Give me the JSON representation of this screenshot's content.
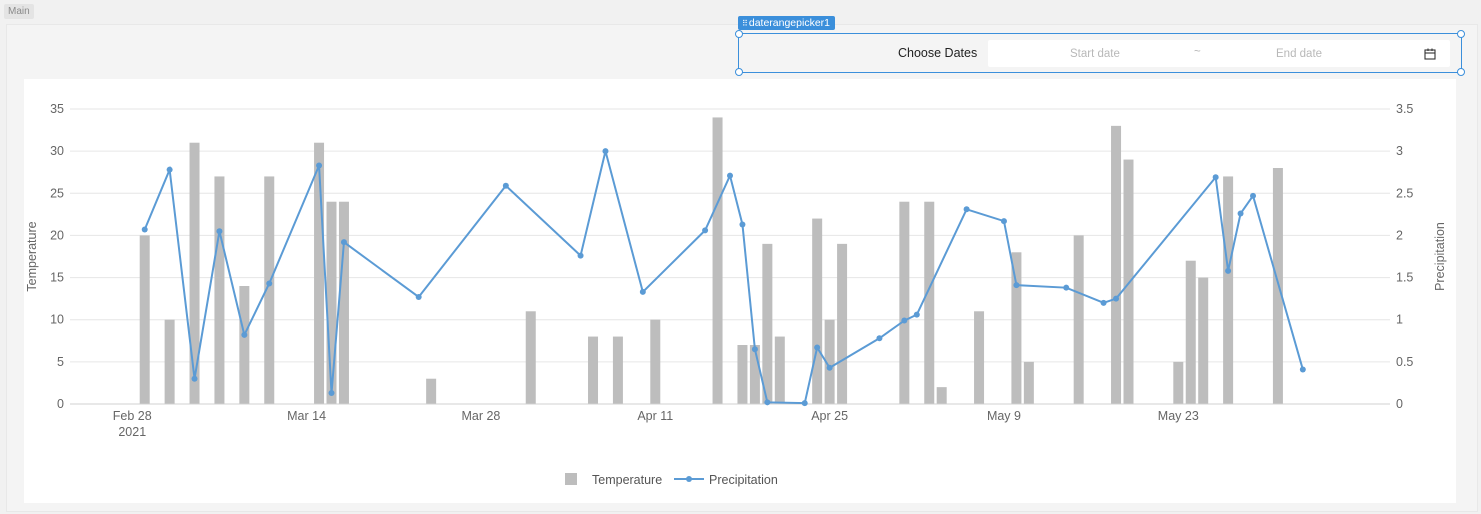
{
  "page": {
    "main_label": "Main"
  },
  "daterangepicker": {
    "tag_label": "daterangepicker1",
    "label": "Choose Dates",
    "start_placeholder": "Start date",
    "separator": "~",
    "end_placeholder": "End date",
    "calendar_icon": "calendar-icon"
  },
  "colors": {
    "bar": "#bdbdbd",
    "line": "#5b9bd5",
    "grid": "#e6e6e6",
    "axis_text": "#666666",
    "selection": "#3b8fdb"
  },
  "chart_data": {
    "type": "bar",
    "xlabel": "",
    "x_ticks": [
      "Feb 28|2021",
      "Mar 14",
      "Mar 28",
      "Apr 11",
      "Apr 25",
      "May 9",
      "May 23"
    ],
    "x_date_range": [
      "2021-02-23",
      "2021-06-09"
    ],
    "x_tick_dates": [
      "2021-02-28",
      "2021-03-14",
      "2021-03-28",
      "2021-04-11",
      "2021-04-25",
      "2021-05-09",
      "2021-05-23"
    ],
    "y_left": {
      "label": "Temperature",
      "lim": [
        0,
        35
      ],
      "ticks": [
        0,
        5,
        10,
        15,
        20,
        25,
        30,
        35
      ]
    },
    "y_right": {
      "label": "Precipitation",
      "lim": [
        0,
        3.5
      ],
      "ticks": [
        "0",
        "0.5",
        "1",
        "1.5",
        "2",
        "2.5",
        "3",
        "3.5"
      ]
    },
    "grid": true,
    "legend": {
      "position": "bottom-center",
      "items": [
        "Temperature",
        "Precipitation"
      ]
    },
    "series": [
      {
        "name": "Temperature",
        "type": "bar",
        "axis": "left",
        "points": [
          [
            "2021-03-01",
            20
          ],
          [
            "2021-03-03",
            10
          ],
          [
            "2021-03-05",
            31
          ],
          [
            "2021-03-07",
            27
          ],
          [
            "2021-03-09",
            14
          ],
          [
            "2021-03-11",
            27
          ],
          [
            "2021-03-15",
            31
          ],
          [
            "2021-03-16",
            24
          ],
          [
            "2021-03-17",
            24
          ],
          [
            "2021-03-24",
            3
          ],
          [
            "2021-04-01",
            11
          ],
          [
            "2021-04-06",
            8
          ],
          [
            "2021-04-08",
            8
          ],
          [
            "2021-04-11",
            10
          ],
          [
            "2021-04-16",
            34
          ],
          [
            "2021-04-18",
            7
          ],
          [
            "2021-04-19",
            7
          ],
          [
            "2021-04-20",
            19
          ],
          [
            "2021-04-21",
            8
          ],
          [
            "2021-04-24",
            22
          ],
          [
            "2021-04-25",
            10
          ],
          [
            "2021-04-26",
            19
          ],
          [
            "2021-05-01",
            24
          ],
          [
            "2021-05-03",
            24
          ],
          [
            "2021-05-04",
            2
          ],
          [
            "2021-05-07",
            11
          ],
          [
            "2021-05-10",
            18
          ],
          [
            "2021-05-11",
            5
          ],
          [
            "2021-05-15",
            20
          ],
          [
            "2021-05-18",
            33
          ],
          [
            "2021-05-19",
            29
          ],
          [
            "2021-05-23",
            5
          ],
          [
            "2021-05-24",
            17
          ],
          [
            "2021-05-25",
            15
          ],
          [
            "2021-05-27",
            27
          ],
          [
            "2021-05-31",
            28
          ]
        ]
      },
      {
        "name": "Precipitation",
        "type": "line",
        "axis": "right",
        "points": [
          [
            "2021-03-01",
            2.07
          ],
          [
            "2021-03-03",
            2.78
          ],
          [
            "2021-03-05",
            0.3
          ],
          [
            "2021-03-07",
            2.05
          ],
          [
            "2021-03-09",
            0.82
          ],
          [
            "2021-03-11",
            1.43
          ],
          [
            "2021-03-15",
            2.83
          ],
          [
            "2021-03-16",
            0.13
          ],
          [
            "2021-03-17",
            1.92
          ],
          [
            "2021-03-23",
            1.27
          ],
          [
            "2021-03-30",
            2.59
          ],
          [
            "2021-04-05",
            1.76
          ],
          [
            "2021-04-07",
            3.0
          ],
          [
            "2021-04-10",
            1.33
          ],
          [
            "2021-04-15",
            2.06
          ],
          [
            "2021-04-17",
            2.71
          ],
          [
            "2021-04-18",
            2.13
          ],
          [
            "2021-04-19",
            0.65
          ],
          [
            "2021-04-20",
            0.02
          ],
          [
            "2021-04-23",
            0.01
          ],
          [
            "2021-04-24",
            0.67
          ],
          [
            "2021-04-25",
            0.43
          ],
          [
            "2021-04-29",
            0.78
          ],
          [
            "2021-05-01",
            0.99
          ],
          [
            "2021-05-02",
            1.06
          ],
          [
            "2021-05-06",
            2.31
          ],
          [
            "2021-05-09",
            2.17
          ],
          [
            "2021-05-10",
            1.41
          ],
          [
            "2021-05-14",
            1.38
          ],
          [
            "2021-05-17",
            1.2
          ],
          [
            "2021-05-18",
            1.25
          ],
          [
            "2021-05-26",
            2.69
          ],
          [
            "2021-05-27",
            1.58
          ],
          [
            "2021-05-28",
            2.26
          ],
          [
            "2021-05-29",
            2.47
          ],
          [
            "2021-06-02",
            0.41
          ]
        ]
      }
    ]
  }
}
